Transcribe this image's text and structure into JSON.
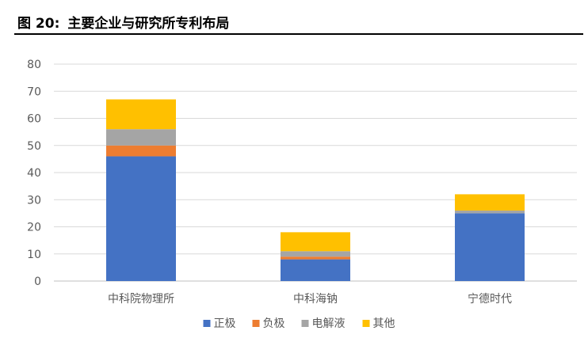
{
  "figure": {
    "number": "图 20:",
    "title": "主要企业与研究所专利布局"
  },
  "chart_data": {
    "type": "bar",
    "stacked": true,
    "categories": [
      "中科院物理所",
      "中科海钠",
      "宁德时代"
    ],
    "series": [
      {
        "name": "正极",
        "color": "#4472C4",
        "values": [
          46,
          8,
          25
        ]
      },
      {
        "name": "负极",
        "color": "#ED7D31",
        "values": [
          4,
          1,
          0
        ]
      },
      {
        "name": "电解液",
        "color": "#A5A5A5",
        "values": [
          6,
          2,
          1
        ]
      },
      {
        "name": "其他",
        "color": "#FFC000",
        "values": [
          11,
          7,
          6
        ]
      }
    ],
    "yticks": [
      0,
      10,
      20,
      30,
      40,
      50,
      60,
      70,
      80
    ],
    "ylim": [
      0,
      80
    ],
    "grid": true,
    "legend_position": "bottom"
  }
}
